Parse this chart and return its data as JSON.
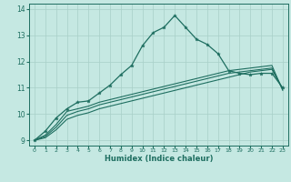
{
  "xlabel": "Humidex (Indice chaleur)",
  "bg_color": "#c5e8e2",
  "grid_color": "#a8cfc8",
  "line_color": "#1e6e60",
  "xlim": [
    -0.5,
    23.5
  ],
  "ylim": [
    8.8,
    14.2
  ],
  "xticks": [
    0,
    1,
    2,
    3,
    4,
    5,
    6,
    7,
    8,
    9,
    10,
    11,
    12,
    13,
    14,
    15,
    16,
    17,
    18,
    19,
    20,
    21,
    22,
    23
  ],
  "yticks": [
    9,
    10,
    11,
    12,
    13,
    14
  ],
  "line_marked_x": [
    0,
    1,
    2,
    3,
    4,
    5,
    6,
    7,
    8,
    9,
    10,
    11,
    12,
    13,
    14,
    15,
    16,
    17,
    18,
    19,
    20,
    21,
    22,
    23
  ],
  "line_marked_y": [
    9.0,
    9.35,
    9.85,
    10.2,
    10.45,
    10.5,
    10.8,
    11.1,
    11.5,
    11.85,
    12.6,
    13.1,
    13.3,
    13.75,
    13.3,
    12.85,
    12.65,
    12.3,
    11.65,
    11.55,
    11.5,
    11.55,
    11.55,
    11.0
  ],
  "line_s1_x": [
    0,
    1,
    2,
    3,
    4,
    5,
    6,
    7,
    8,
    9,
    10,
    11,
    12,
    13,
    14,
    15,
    16,
    17,
    18,
    19,
    20,
    21,
    22,
    23
  ],
  "line_s1_y": [
    9.0,
    9.2,
    9.6,
    10.1,
    10.2,
    10.3,
    10.45,
    10.55,
    10.65,
    10.75,
    10.85,
    10.95,
    11.05,
    11.15,
    11.25,
    11.35,
    11.45,
    11.55,
    11.65,
    11.7,
    11.75,
    11.8,
    11.85,
    10.9
  ],
  "line_s2_x": [
    0,
    1,
    2,
    3,
    4,
    5,
    6,
    7,
    8,
    9,
    10,
    11,
    12,
    13,
    14,
    15,
    16,
    17,
    18,
    19,
    20,
    21,
    22,
    23
  ],
  "line_s2_y": [
    9.0,
    9.15,
    9.5,
    9.95,
    10.1,
    10.2,
    10.35,
    10.45,
    10.55,
    10.65,
    10.75,
    10.85,
    10.95,
    11.05,
    11.15,
    11.25,
    11.35,
    11.45,
    11.55,
    11.6,
    11.65,
    11.7,
    11.75,
    10.95
  ],
  "line_s3_x": [
    0,
    1,
    2,
    3,
    4,
    5,
    6,
    7,
    8,
    9,
    10,
    11,
    12,
    13,
    14,
    15,
    16,
    17,
    18,
    19,
    20,
    21,
    22,
    23
  ],
  "line_s3_y": [
    9.0,
    9.1,
    9.4,
    9.8,
    9.95,
    10.05,
    10.2,
    10.3,
    10.4,
    10.5,
    10.6,
    10.7,
    10.8,
    10.9,
    11.0,
    11.1,
    11.2,
    11.3,
    11.4,
    11.5,
    11.6,
    11.65,
    11.7,
    10.95
  ]
}
